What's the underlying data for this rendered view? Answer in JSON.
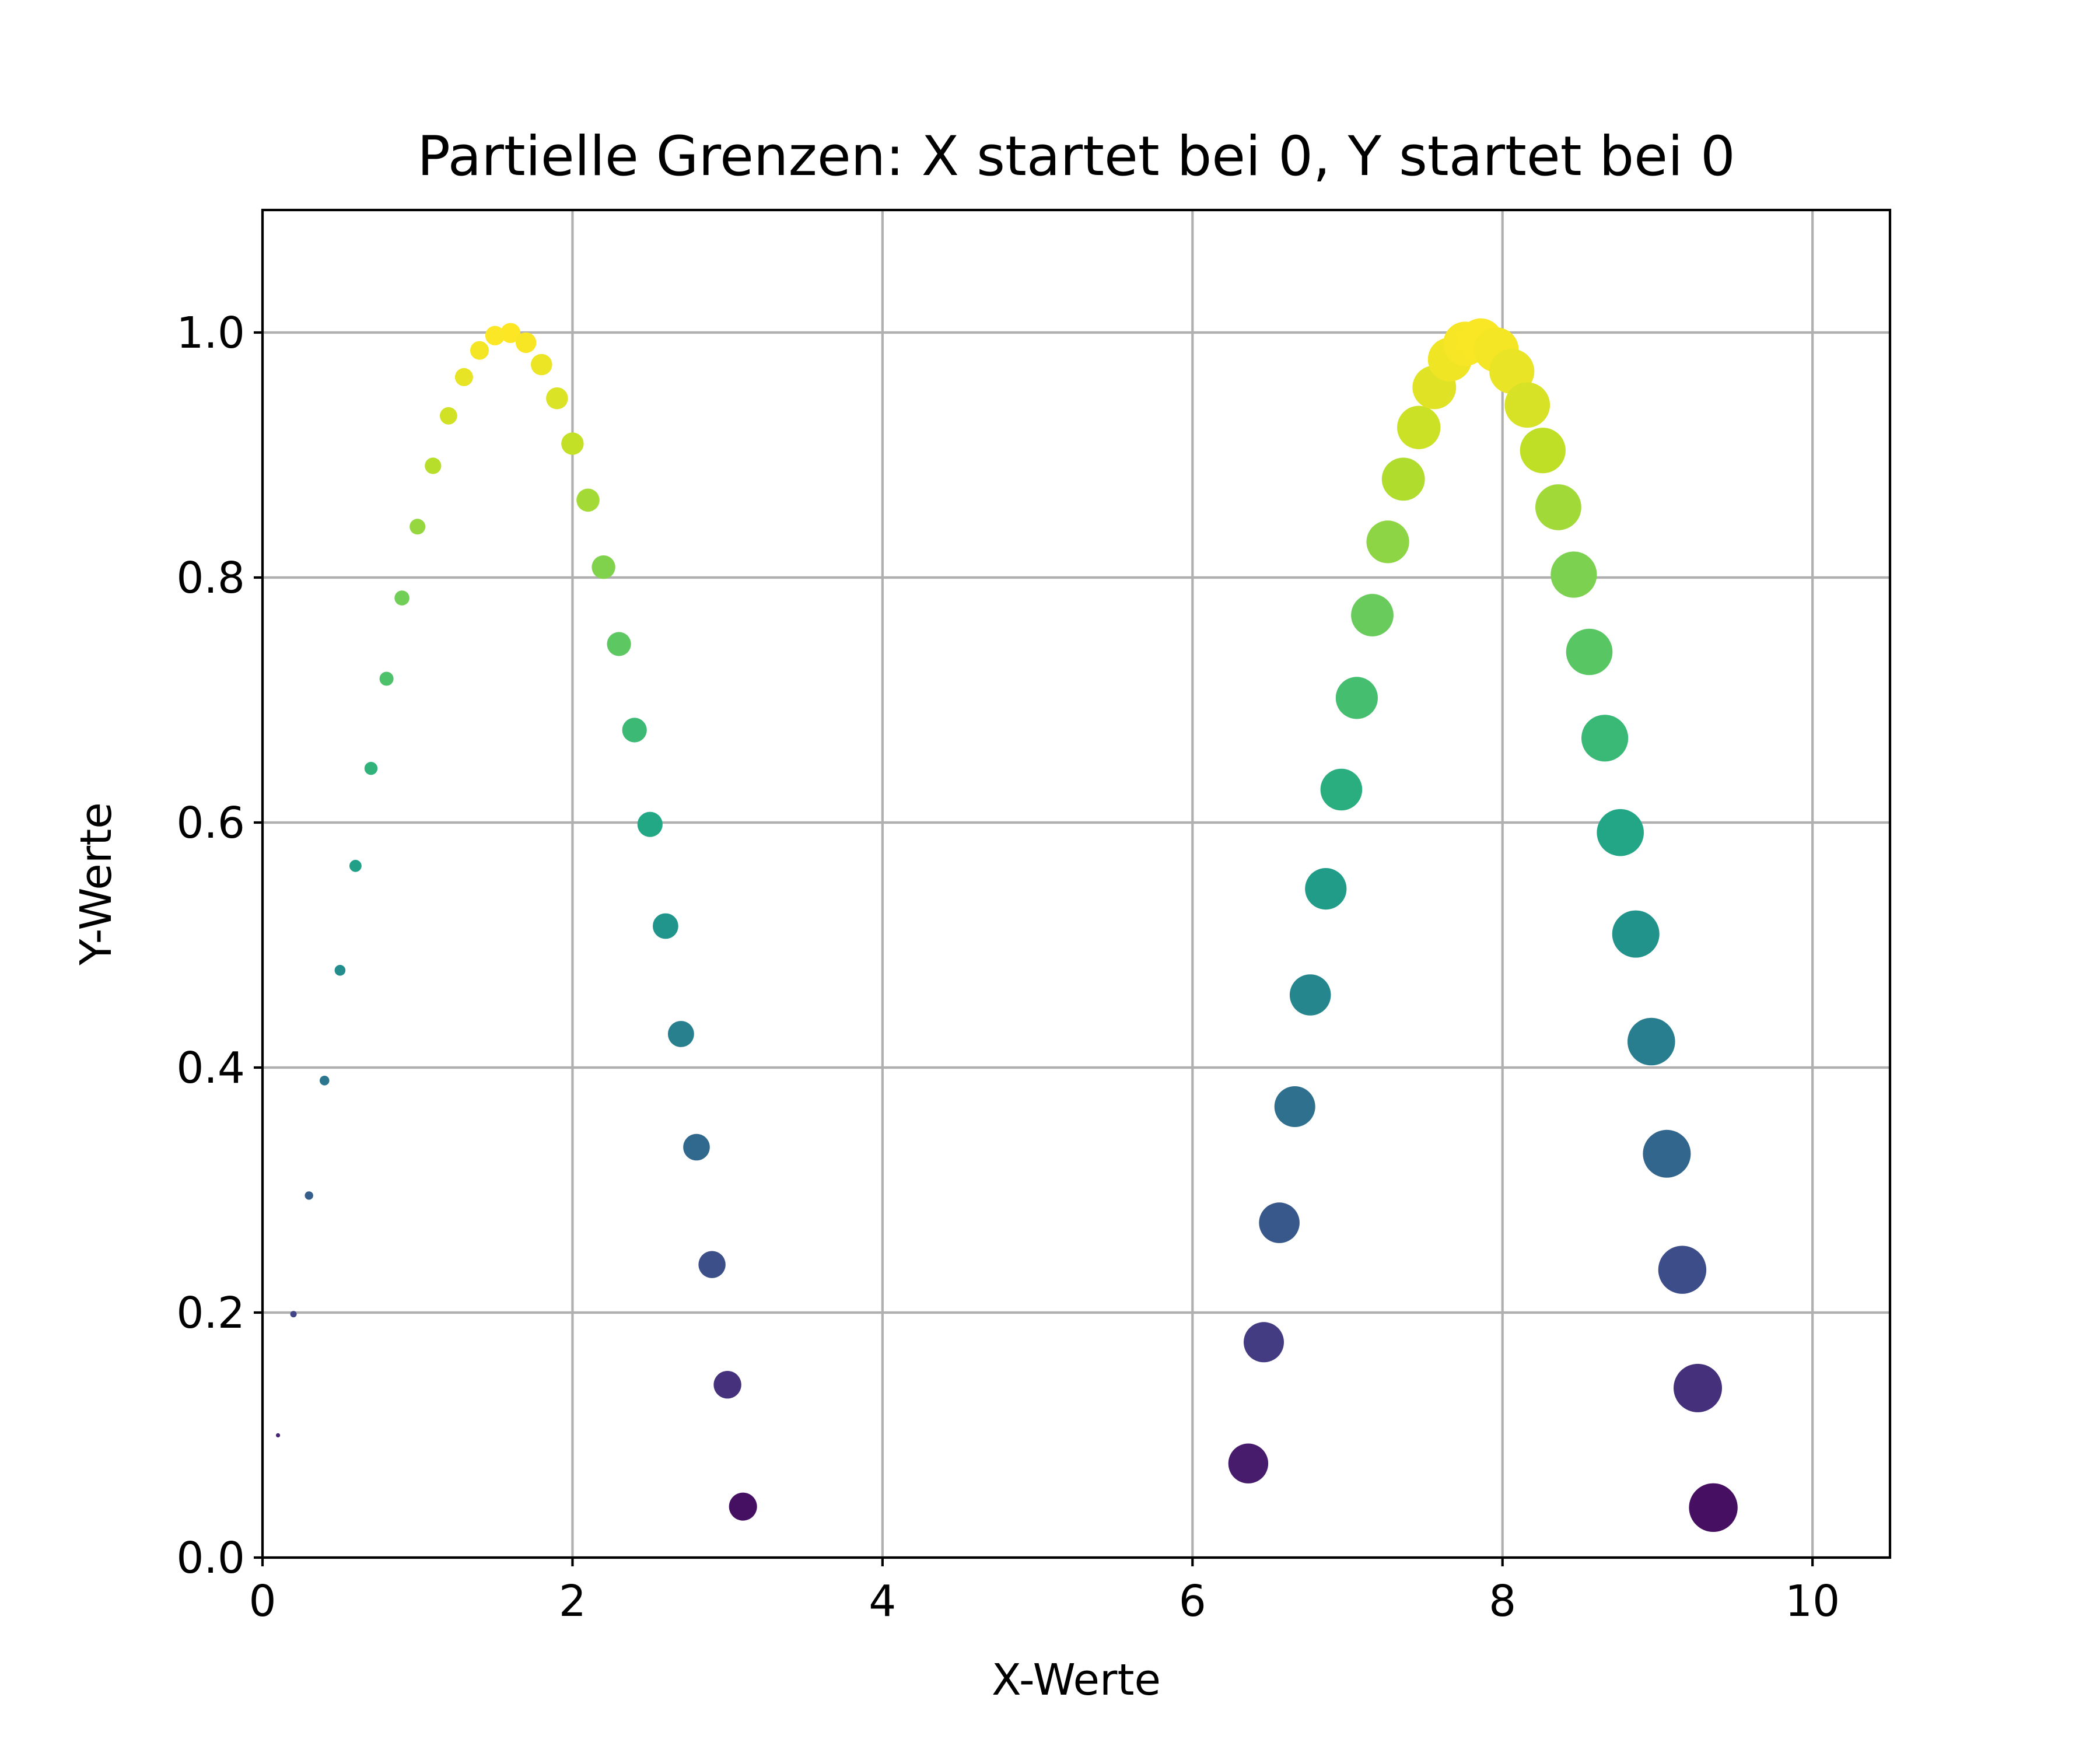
{
  "chart_data": {
    "type": "scatter",
    "title": "Partielle Grenzen: X startet bei 0, Y startet bei 0",
    "xlabel": "X-Werte",
    "ylabel": "Y-Werte",
    "xlim": [
      0,
      10.5
    ],
    "ylim": [
      0,
      1.1
    ],
    "grid": true,
    "colormap": "viridis",
    "color_scale_range": [
      0,
      1
    ],
    "x_ticks": [
      0,
      2,
      4,
      6,
      8,
      10
    ],
    "x_tick_labels": [
      "0",
      "2",
      "4",
      "6",
      "8",
      "10"
    ],
    "y_ticks": [
      0.0,
      0.2,
      0.4,
      0.6,
      0.8,
      1.0
    ],
    "y_tick_labels": [
      "0.0",
      "0.2",
      "0.4",
      "0.6",
      "0.8",
      "1.0"
    ],
    "series": [
      {
        "x": [
          0.1,
          0.2,
          0.3,
          0.4,
          0.5,
          0.6,
          0.7,
          0.8,
          0.9,
          1.0,
          1.1,
          1.2,
          1.3,
          1.4,
          1.5,
          1.6,
          1.7,
          1.8,
          1.9,
          2.0,
          2.1,
          2.2,
          2.3,
          2.4,
          2.5,
          2.6,
          2.7,
          2.8,
          2.9,
          3.0,
          3.1
        ],
        "y": [
          0.0998,
          0.1987,
          0.2955,
          0.3894,
          0.4794,
          0.5646,
          0.6442,
          0.7174,
          0.7833,
          0.8415,
          0.8912,
          0.932,
          0.9636,
          0.9854,
          0.9975,
          0.9996,
          0.9917,
          0.9738,
          0.9463,
          0.9093,
          0.8632,
          0.8085,
          0.7457,
          0.6755,
          0.5985,
          0.5155,
          0.4274,
          0.335,
          0.2392,
          0.1411,
          0.0416
        ],
        "marker_size": [
          3,
          7,
          12,
          16,
          20,
          25,
          29,
          33,
          38,
          42,
          46,
          51,
          55,
          59,
          64,
          68,
          72,
          77,
          81,
          85,
          90,
          94,
          98,
          103,
          107,
          111,
          116,
          120,
          124,
          129,
          133
        ]
      },
      {
        "x": [
          6.36,
          6.46,
          6.56,
          6.66,
          6.76,
          6.86,
          6.96,
          7.06,
          7.16,
          7.26,
          7.36,
          7.46,
          7.56,
          7.66,
          7.76,
          7.86,
          7.96,
          8.06,
          8.16,
          8.26,
          8.36,
          8.46,
          8.56,
          8.66,
          8.76,
          8.86,
          8.96,
          9.06,
          9.16,
          9.26,
          9.36
        ],
        "y": [
          0.0768,
          0.1758,
          0.2733,
          0.3681,
          0.4593,
          0.5459,
          0.6269,
          0.7017,
          0.7693,
          0.8291,
          0.8803,
          0.9225,
          0.9552,
          0.978,
          0.9908,
          0.9934,
          0.9859,
          0.9683,
          0.9408,
          0.9037,
          0.8574,
          0.8024,
          0.7393,
          0.6689,
          0.5918,
          0.509,
          0.4212,
          0.3296,
          0.2349,
          0.1384,
          0.0408
        ],
        "marker_size": [
          270,
          274,
          279,
          283,
          287,
          292,
          296,
          300,
          305,
          309,
          313,
          318,
          322,
          326,
          331,
          335,
          339,
          344,
          348,
          352,
          357,
          361,
          365,
          370,
          374,
          378,
          383,
          387,
          391,
          396,
          400
        ]
      }
    ]
  }
}
